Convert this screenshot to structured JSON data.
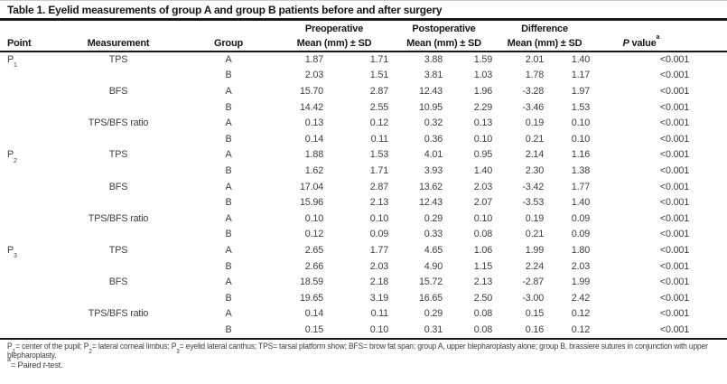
{
  "title": "Table 1. Eyelid measurements of group A and group B patients before and after surgery",
  "header": {
    "point": "Point",
    "measurement": "Measurement",
    "group": "Group",
    "preoperative": "Preoperative",
    "postoperative": "Postoperative",
    "difference": "Difference",
    "mean_sd": "Mean (mm) ± SD",
    "p_value_parts": [
      {
        "i": "P"
      },
      {
        "t": " value"
      },
      {
        "sup": "a"
      }
    ]
  },
  "rows": [
    {
      "point": {
        "base": "P",
        "sub": "1"
      },
      "measurement": "TPS",
      "group": "A",
      "pre_mean": "1.87",
      "pre_sd": "1.71",
      "post_mean": "3.88",
      "post_sd": "1.59",
      "diff_mean": "2.01",
      "diff_sd": "1.40",
      "p": "<0.001"
    },
    {
      "group": "B",
      "pre_mean": "2.03",
      "pre_sd": "1.51",
      "post_mean": "3.81",
      "post_sd": "1.03",
      "diff_mean": "1.78",
      "diff_sd": "1.17",
      "p": "<0.001"
    },
    {
      "measurement": "BFS",
      "group": "A",
      "pre_mean": "15.70",
      "pre_sd": "2.87",
      "post_mean": "12.43",
      "post_sd": "1.96",
      "diff_mean": "-3.28",
      "diff_sd": "1.97",
      "p": "<0.001"
    },
    {
      "group": "B",
      "pre_mean": "14.42",
      "pre_sd": "2.55",
      "post_mean": "10.95",
      "post_sd": "2.29",
      "diff_mean": "-3.46",
      "diff_sd": "1.53",
      "p": "<0.001"
    },
    {
      "measurement": "TPS/BFS ratio",
      "group": "A",
      "pre_mean": "0.13",
      "pre_sd": "0.12",
      "post_mean": "0.32",
      "post_sd": "0.13",
      "diff_mean": "0.19",
      "diff_sd": "0.10",
      "p": "<0.001"
    },
    {
      "group": "B",
      "pre_mean": "0.14",
      "pre_sd": "0.11",
      "post_mean": "0.36",
      "post_sd": "0.10",
      "diff_mean": "0.21",
      "diff_sd": "0.10",
      "p": "<0.001"
    },
    {
      "point": {
        "base": "P",
        "sub": "2"
      },
      "measurement": "TPS",
      "group": "A",
      "pre_mean": "1.88",
      "pre_sd": "1.53",
      "post_mean": "4.01",
      "post_sd": "0.95",
      "diff_mean": "2.14",
      "diff_sd": "1.16",
      "p": "<0.001"
    },
    {
      "group": "B",
      "pre_mean": "1.62",
      "pre_sd": "1.71",
      "post_mean": "3.93",
      "post_sd": "1.40",
      "diff_mean": "2.30",
      "diff_sd": "1.38",
      "p": "<0.001"
    },
    {
      "measurement": "BFS",
      "group": "A",
      "pre_mean": "17.04",
      "pre_sd": "2.87",
      "post_mean": "13.62",
      "post_sd": "2.03",
      "diff_mean": "-3.42",
      "diff_sd": "1.77",
      "p": "<0.001"
    },
    {
      "group": "B",
      "pre_mean": "15.96",
      "pre_sd": "2.13",
      "post_mean": "12.43",
      "post_sd": "2.07",
      "diff_mean": "-3.53",
      "diff_sd": "1.40",
      "p": "<0.001"
    },
    {
      "measurement": "TPS/BFS ratio",
      "group": "A",
      "pre_mean": "0.10",
      "pre_sd": "0.10",
      "post_mean": "0.29",
      "post_sd": "0.10",
      "diff_mean": "0.19",
      "diff_sd": "0.09",
      "p": "<0.001"
    },
    {
      "group": "B",
      "pre_mean": "0.12",
      "pre_sd": "0.09",
      "post_mean": "0.33",
      "post_sd": "0.08",
      "diff_mean": "0.21",
      "diff_sd": "0.09",
      "p": "<0.001"
    },
    {
      "point": {
        "base": "P",
        "sub": "3"
      },
      "measurement": "TPS",
      "group": "A",
      "pre_mean": "2.65",
      "pre_sd": "1.77",
      "post_mean": "4.65",
      "post_sd": "1.06",
      "diff_mean": "1.99",
      "diff_sd": "1.80",
      "p": "<0.001"
    },
    {
      "group": "B",
      "pre_mean": "2.66",
      "pre_sd": "2.03",
      "post_mean": "4.90",
      "post_sd": "1.15",
      "diff_mean": "2.24",
      "diff_sd": "2.03",
      "p": "<0.001"
    },
    {
      "measurement": "BFS",
      "group": "A",
      "pre_mean": "18.59",
      "pre_sd": "2.18",
      "post_mean": "15.72",
      "post_sd": "2.13",
      "diff_mean": "-2.87",
      "diff_sd": "1.99",
      "p": "<0.001"
    },
    {
      "group": "B",
      "pre_mean": "19.65",
      "pre_sd": "3.19",
      "post_mean": "16.65",
      "post_sd": "2.50",
      "diff_mean": "-3.00",
      "diff_sd": "2.42",
      "p": "<0.001"
    },
    {
      "measurement": "TPS/BFS ratio",
      "group": "A",
      "pre_mean": "0.14",
      "pre_sd": "0.11",
      "post_mean": "0.29",
      "post_sd": "0.08",
      "diff_mean": "0.15",
      "diff_sd": "0.12",
      "p": "<0.001"
    },
    {
      "group": "B",
      "pre_mean": "0.15",
      "pre_sd": "0.10",
      "post_mean": "0.31",
      "post_sd": "0.08",
      "diff_mean": "0.16",
      "diff_sd": "0.12",
      "p": "<0.001"
    }
  ],
  "footnotes": {
    "line1_parts": [
      {
        "t": "P"
      },
      {
        "sub": "1"
      },
      {
        "t": "= center of the pupil; P"
      },
      {
        "sub": "2"
      },
      {
        "t": "= lateral corneal limbus; P"
      },
      {
        "sub": "3"
      },
      {
        "t": "= eyelid lateral canthus; TPS= tarsal platform show; BFS= brow fat span; group A, upper blepharoplasty alone; group B, brassiere sutures in conjunction with upper blepharoplasty."
      }
    ],
    "line2_parts": [
      {
        "sup": "a"
      },
      {
        "t": "= Paired "
      },
      {
        "i": "t"
      },
      {
        "t": "-test."
      }
    ]
  },
  "colors": {
    "rule": "#1a1a1a",
    "text": "#3e3e3e",
    "heading": "#161616",
    "background": "#ffffff",
    "top_edge": "#cfcabf"
  }
}
